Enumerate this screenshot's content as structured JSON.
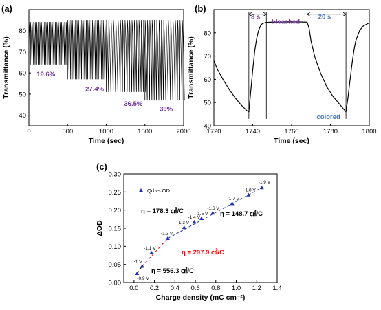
{
  "panels": {
    "a": {
      "label": "(a)"
    },
    "b": {
      "label": "(b)"
    },
    "c": {
      "label": "(c)"
    }
  },
  "chart_data": [
    {
      "id": "a",
      "type": "line",
      "xlabel": "Time (sec)",
      "ylabel": "Transmittance (%)",
      "xlim": [
        0,
        2000
      ],
      "ylim": [
        35,
        90
      ],
      "xticks": [
        0,
        500,
        1000,
        1500,
        2000
      ],
      "yticks": [
        40,
        50,
        60,
        70,
        80
      ],
      "grid": false,
      "series_color": "#000000",
      "segments": [
        {
          "t_start": 0,
          "t_end": 500,
          "period": 20,
          "y_max": 84,
          "y_min": 64
        },
        {
          "t_start": 500,
          "t_end": 1000,
          "period": 20,
          "y_max": 85,
          "y_min": 57
        },
        {
          "t_start": 1000,
          "t_end": 1500,
          "period": 30,
          "y_max": 85,
          "y_min": 51
        },
        {
          "t_start": 1500,
          "t_end": 2000,
          "period": 30,
          "y_max": 85,
          "y_min": 47
        }
      ],
      "annotations": [
        {
          "text": "19.6%",
          "x": 100,
          "y": 58.5
        },
        {
          "text": "27.4%",
          "x": 730,
          "y": 51.5
        },
        {
          "text": "36.5%",
          "x": 1230,
          "y": 44.5
        },
        {
          "text": "39%",
          "x": 1690,
          "y": 42
        }
      ]
    },
    {
      "id": "b",
      "type": "line",
      "xlabel": "Time (sec)",
      "ylabel": "Transmittance (%)",
      "xlim": [
        1720,
        1800
      ],
      "ylim": [
        40,
        90
      ],
      "xticks": [
        1720,
        1740,
        1760,
        1780,
        1800
      ],
      "yticks": [
        40,
        50,
        60,
        70,
        80
      ],
      "grid": false,
      "series_color": "#000000",
      "x": [
        1720,
        1722,
        1725,
        1728,
        1731,
        1734,
        1737,
        1738,
        1739,
        1740,
        1741,
        1742,
        1743,
        1744,
        1745,
        1747,
        1750,
        1760,
        1768,
        1769,
        1770,
        1772,
        1775,
        1778,
        1781,
        1784,
        1787,
        1788,
        1789,
        1790,
        1791,
        1792,
        1793,
        1795,
        1797,
        1800
      ],
      "y": [
        68,
        64,
        59.5,
        55.5,
        52,
        49,
        46.5,
        46,
        55,
        64,
        72,
        77.5,
        81,
        83,
        84,
        84.5,
        84.6,
        84.7,
        84.6,
        82,
        76.5,
        69.5,
        62.5,
        57,
        53,
        50,
        47,
        46,
        52,
        59,
        66,
        72,
        76.5,
        81,
        83,
        84.3
      ],
      "annotations": [
        {
          "text": "8 s",
          "x": 1741.5,
          "y": 86
        },
        {
          "text": "bleached",
          "x": 1757,
          "y": 84
        },
        {
          "text": "20 s",
          "x": 1777,
          "y": 86
        },
        {
          "text": "colored",
          "x": 1779,
          "y": 43
        }
      ],
      "brackets": [
        {
          "x1": 1738,
          "x2": 1747,
          "y": 88
        },
        {
          "x1": 1768,
          "x2": 1788,
          "y": 88
        }
      ],
      "vlines": [
        1738,
        1747,
        1768,
        1788
      ]
    },
    {
      "id": "c",
      "type": "scatter",
      "xlabel": "Charge density (mC cm⁻²)",
      "ylabel": "ΔOD",
      "xlim": [
        -0.1,
        1.4
      ],
      "ylim": [
        0,
        0.3
      ],
      "xticks": [
        "0.0",
        "0.2",
        "0.4",
        "0.6",
        "0.8",
        "1.0",
        "1.2",
        "1.4"
      ],
      "yticks": [
        "0.00",
        "0.05",
        "0.10",
        "0.15",
        "0.20",
        "0.25",
        "0.30"
      ],
      "grid": false,
      "legend": {
        "label": "Qd vs OD",
        "position": "top-left"
      },
      "marker_color": "#1f2fa8",
      "points": [
        {
          "x": 0.03,
          "y": 0.025,
          "label": "-0.9 V"
        },
        {
          "x": 0.08,
          "y": 0.045,
          "label": "-1 V"
        },
        {
          "x": 0.17,
          "y": 0.082,
          "label": "-1.1 V"
        },
        {
          "x": 0.33,
          "y": 0.122,
          "label": "-1.2 V"
        },
        {
          "x": 0.49,
          "y": 0.152,
          "label": "-1.3 V"
        },
        {
          "x": 0.59,
          "y": 0.167,
          "label": "-1.4 V"
        },
        {
          "x": 0.66,
          "y": 0.177,
          "label": "-1.5 V"
        },
        {
          "x": 0.77,
          "y": 0.192,
          "label": "-1.6 V"
        },
        {
          "x": 0.96,
          "y": 0.218,
          "label": "-1.7 V"
        },
        {
          "x": 1.12,
          "y": 0.242,
          "label": "-1.8 V"
        },
        {
          "x": 1.25,
          "y": 0.262,
          "label": "-1.9 V"
        }
      ],
      "fits": [
        {
          "x": [
            0.03,
            0.08
          ],
          "y": [
            0.025,
            0.045
          ],
          "color": "#000000"
        },
        {
          "x": [
            0.08,
            0.33
          ],
          "y": [
            0.045,
            0.122
          ],
          "color": "#ff0000"
        },
        {
          "x": [
            0.33,
            1.25
          ],
          "y": [
            0.122,
            0.262
          ],
          "color": "#1f2fa8"
        }
      ],
      "annotations": [
        {
          "text": "η = 178.3 ㎠/C",
          "color": "black"
        },
        {
          "text": "η = 148.7 ㎠/C",
          "color": "black"
        },
        {
          "text": "η = 297.9 ㎠/C",
          "color": "red"
        },
        {
          "text": "η = 556.3 ㎠/C",
          "color": "black"
        }
      ]
    }
  ]
}
